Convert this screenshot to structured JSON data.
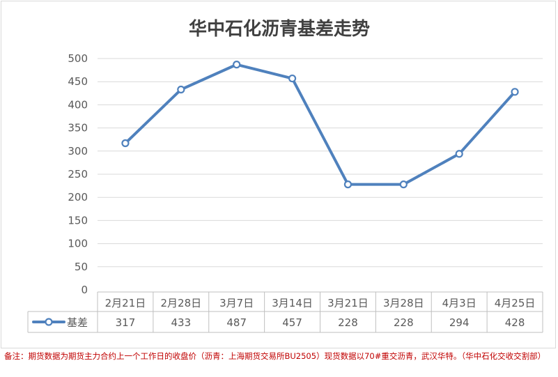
{
  "chart_data": {
    "type": "line",
    "title": "华中石化沥青基差走势",
    "categories": [
      "2月21日",
      "2月28日",
      "3月7日",
      "3月14日",
      "3月21日",
      "3月28日",
      "4月3日",
      "4月25日"
    ],
    "series": [
      {
        "name": "基差",
        "values": [
          317,
          433,
          487,
          457,
          228,
          228,
          294,
          428
        ],
        "color": "#4f81bd"
      }
    ],
    "y_ticks": [
      "0",
      "50",
      "100",
      "150",
      "200",
      "250",
      "300",
      "350",
      "400",
      "450",
      "500"
    ],
    "ylim": [
      0,
      500
    ],
    "grid": true,
    "legend": "data-table-left"
  },
  "footnote": "备注：期货数据为期货主力合约上一个工作日的收盘价（沥青：上海期货交易所BU2505）现货数据以70#重交沥青，武汉华特。（华中石化交收交割部）"
}
